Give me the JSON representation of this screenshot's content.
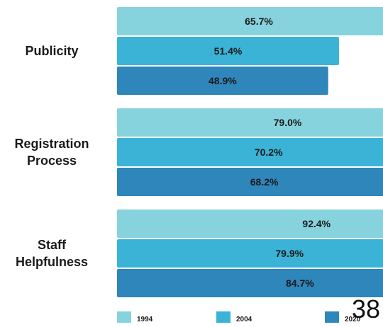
{
  "colors": {
    "series_1994": "#86d3dd",
    "series_2004": "#3bb3d6",
    "series_2020": "#2e86ba",
    "label_text": "#1a1a1a",
    "background": "#ffffff"
  },
  "chart_data": {
    "type": "bar",
    "orientation": "horizontal",
    "categories": [
      "Publicity",
      "Registration Process",
      "Staff Helpfulness"
    ],
    "category_lines": [
      [
        "Publicity"
      ],
      [
        "Registration",
        "Process"
      ],
      [
        "Staff",
        "Helpfulness"
      ]
    ],
    "series": [
      {
        "name": "1994",
        "values": [
          65.7,
          79.0,
          92.4
        ],
        "labels": [
          "65.7%",
          "79.0%",
          "92.4%"
        ]
      },
      {
        "name": "2004",
        "values": [
          51.4,
          70.2,
          79.9
        ],
        "labels": [
          "51.4%",
          "70.2%",
          "79.9%"
        ]
      },
      {
        "name": "2020",
        "values": [
          48.9,
          68.2,
          84.7
        ],
        "labels": [
          "48.9%",
          "68.2%",
          "84.7%"
        ]
      }
    ],
    "title": "",
    "xlabel": "",
    "ylabel": "",
    "grid": false,
    "legend_position": "bottom"
  },
  "page_number": "38"
}
